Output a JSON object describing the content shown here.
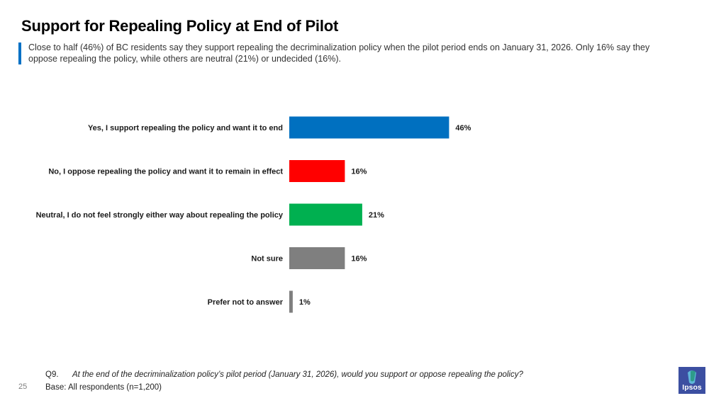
{
  "title": "Support for Repealing Policy at End of Pilot",
  "subtitle": "Close to half (46%) of BC residents say they support repealing the decriminalization policy when the pilot period ends on January 31, 2026. Only 16% say they oppose repealing the policy, while others are neutral (21%) or undecided (16%).",
  "colors": {
    "accent": "#0071c5",
    "support": "#0070c0",
    "oppose": "#ff0000",
    "neutral": "#00b050",
    "not_sure": "#7f7f7f",
    "prefer_not": "#7f7f7f",
    "logo_bg": "#3c4fa1"
  },
  "chart_data": {
    "type": "bar",
    "orientation": "horizontal",
    "categories": [
      "Yes, I support repealing the policy and want it to end",
      "No, I oppose repealing the policy and want it to remain in effect",
      "Neutral, I do not feel strongly either way about repealing the policy",
      "Not sure",
      "Prefer not to answer"
    ],
    "values": [
      46,
      16,
      21,
      16,
      1
    ],
    "labels": [
      "46%",
      "16%",
      "21%",
      "16%",
      "1%"
    ],
    "bar_colors": [
      "#0070c0",
      "#ff0000",
      "#00b050",
      "#7f7f7f",
      "#7f7f7f"
    ],
    "xlim": [
      0,
      100
    ],
    "unit": "%",
    "grid": false,
    "legend": "none"
  },
  "footnote": {
    "question_number": "Q9.",
    "question_text": "At the end of the decriminalization policy’s pilot period (January 31, 2026), would you support or oppose repealing the policy?",
    "base": "Base: All respondents (n=1,200)"
  },
  "page_number": "25",
  "logo": {
    "text": "Ipsos",
    "icon": "ipsos-logo-icon"
  }
}
